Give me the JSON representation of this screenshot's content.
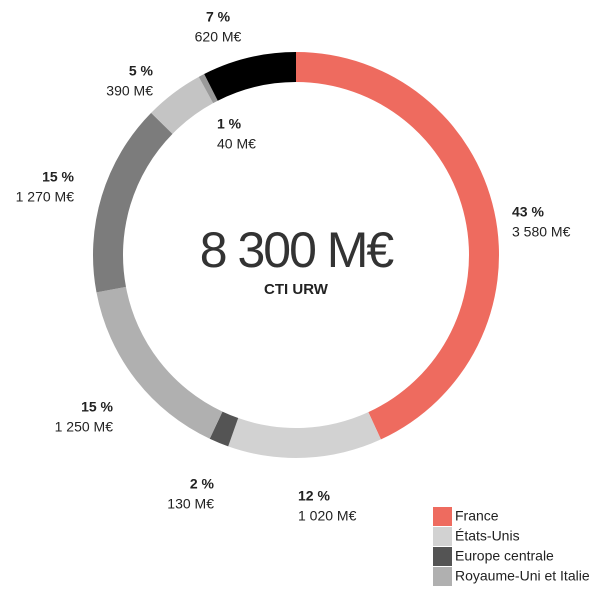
{
  "chart_data": {
    "type": "donut",
    "center_title": "8 300 M€",
    "center_subtitle": "CTI URW",
    "categories": [
      "France",
      "États-Unis",
      "Europe centrale",
      "Royaume-Uni et Italie",
      null,
      null,
      null,
      null
    ],
    "values": [
      3580,
      1020,
      130,
      1250,
      1270,
      390,
      40,
      620
    ],
    "value_labels": [
      "3 580 M€",
      "1 020 M€",
      "130 M€",
      "1 250 M€",
      "1 270 M€",
      "390 M€",
      "40 M€",
      "620 M€"
    ],
    "percents": [
      43,
      12,
      2,
      15,
      15,
      5,
      1,
      7
    ],
    "percent_labels": [
      "43 %",
      "12 %",
      "2 %",
      "15 %",
      "15 %",
      "5 %",
      "1 %",
      "7 %"
    ],
    "colors": [
      "#ee6b5f",
      "#d2d2d2",
      "#545454",
      "#b0b0b0",
      "#7c7c7c",
      "#c4c4c4",
      "#9a9a9a",
      "#000000"
    ]
  }
}
